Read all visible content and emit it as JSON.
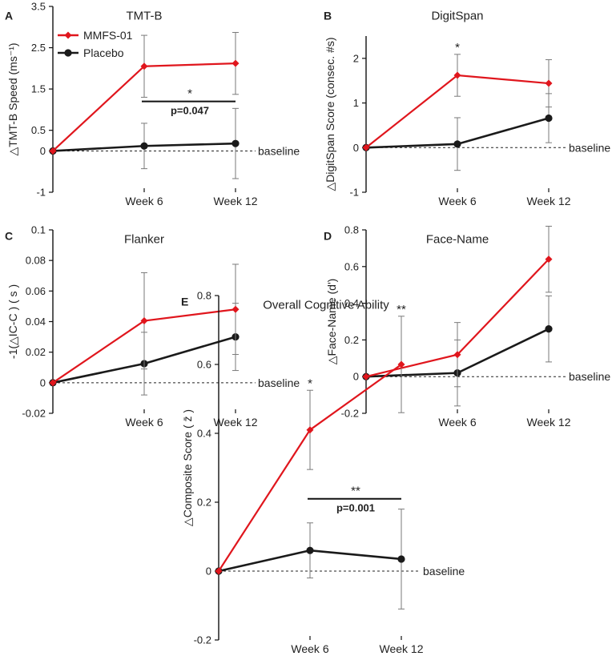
{
  "colors": {
    "mmfs": "#e0161d",
    "placebo": "#1a1a1a",
    "error_bar": "#7a7a7a",
    "axis": "#111111"
  },
  "legend": [
    {
      "name": "MMFS-01",
      "color": "#e0161d",
      "marker": "diamond"
    },
    {
      "name": "Placebo",
      "color": "#1a1a1a",
      "marker": "circle"
    }
  ],
  "baseline_label": "baseline",
  "chart_data": [
    {
      "panel": "A",
      "type": "line",
      "title": "TMT-B",
      "ylabel": "△TMT-B Speed (ms⁻¹)",
      "x": [
        "",
        "Week 6",
        "Week 12"
      ],
      "ylim": [
        -1,
        3.5
      ],
      "yticks": [
        -1,
        0,
        0.5,
        1.5,
        2.5,
        3.5
      ],
      "ytick_labels": [
        "-1",
        "0",
        "0.5",
        "1.5",
        "2.5",
        "3.5"
      ],
      "series": [
        {
          "name": "MMFS-01",
          "values": [
            0,
            2.05,
            2.12
          ],
          "err": [
            0,
            0.75,
            0.75
          ]
        },
        {
          "name": "Placebo",
          "values": [
            0,
            0.12,
            0.18
          ],
          "err": [
            0,
            0.55,
            0.85
          ]
        }
      ],
      "annotations": [
        {
          "star": "*",
          "p": "p=0.047",
          "from": 1,
          "to": 2,
          "y": 1.2
        }
      ],
      "show_legend": true
    },
    {
      "panel": "B",
      "type": "line",
      "title": "DigitSpan",
      "ylabel": "△DigitSpan Score (consec. #s)",
      "x": [
        "",
        "Week 6",
        "Week 12"
      ],
      "ylim": [
        -1,
        2.5
      ],
      "yticks": [
        -1,
        0,
        1,
        2
      ],
      "ytick_labels": [
        "-1",
        "0",
        "1",
        "2"
      ],
      "series": [
        {
          "name": "MMFS-01",
          "values": [
            0,
            1.62,
            1.44
          ],
          "err": [
            0,
            0.47,
            0.53
          ]
        },
        {
          "name": "Placebo",
          "values": [
            0,
            0.08,
            0.66
          ],
          "err": [
            0,
            0.59,
            0.55
          ]
        }
      ],
      "point_stars": [
        {
          "index": 1,
          "text": "*"
        }
      ]
    },
    {
      "panel": "C",
      "type": "line",
      "title": "Flanker",
      "ylabel": "-1(△IC-C ) ( s )",
      "x": [
        "",
        "Week 6",
        "Week 12"
      ],
      "ylim": [
        -0.02,
        0.1
      ],
      "yticks": [
        -0.02,
        0,
        0.02,
        0.04,
        0.06,
        0.08,
        0.1
      ],
      "ytick_labels": [
        "-0.02",
        "0",
        "0.02",
        "0.04",
        "0.06",
        "0.08",
        "0.1"
      ],
      "series": [
        {
          "name": "MMFS-01",
          "values": [
            0,
            0.0405,
            0.048
          ],
          "err": [
            0,
            0.0315,
            0.0295
          ]
        },
        {
          "name": "Placebo",
          "values": [
            0,
            0.0125,
            0.03
          ],
          "err": [
            0,
            0.0205,
            0.022
          ]
        }
      ]
    },
    {
      "panel": "D",
      "type": "line",
      "title": "Face-Name",
      "ylabel": "△Face-Name (d')",
      "x": [
        "",
        "Week 6",
        "Week 12"
      ],
      "ylim": [
        -0.2,
        0.8
      ],
      "yticks": [
        -0.2,
        0,
        0.2,
        0.4,
        0.6,
        0.8
      ],
      "ytick_labels": [
        "-0.2",
        "0",
        "0.2",
        "0.4",
        "0.6",
        "0.8"
      ],
      "series": [
        {
          "name": "MMFS-01",
          "values": [
            0,
            0.12,
            0.64
          ],
          "err": [
            0,
            0.175,
            0.18
          ]
        },
        {
          "name": "Placebo",
          "values": [
            0,
            0.02,
            0.26
          ],
          "err": [
            0,
            0.18,
            0.18
          ]
        }
      ]
    },
    {
      "panel": "E",
      "type": "line",
      "title": "Overall Cognitive Ability",
      "ylabel": "△Composite Score ( z̄ )",
      "x": [
        "",
        "Week 6",
        "Week 12"
      ],
      "ylim": [
        -0.2,
        0.8
      ],
      "yticks": [
        -0.2,
        0,
        0.2,
        0.4,
        0.6,
        0.8
      ],
      "ytick_labels": [
        "-0.2",
        "0",
        "0.2",
        "0.4",
        "0.6",
        "0.8"
      ],
      "series": [
        {
          "name": "MMFS-01",
          "values": [
            0,
            0.41,
            0.6
          ],
          "err": [
            0,
            0.115,
            0.14
          ]
        },
        {
          "name": "Placebo",
          "values": [
            0,
            0.06,
            0.035
          ],
          "err": [
            0,
            0.08,
            0.145
          ]
        }
      ],
      "annotations": [
        {
          "star": "**",
          "p": "p=0.001",
          "from": 1,
          "to": 2,
          "y": 0.21
        }
      ],
      "point_stars": [
        {
          "index": 1,
          "text": "*"
        },
        {
          "index": 2,
          "text": "**"
        }
      ]
    }
  ]
}
